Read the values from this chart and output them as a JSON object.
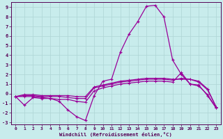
{
  "title": "",
  "xlabel": "Windchill (Refroidissement éolien,°C)",
  "ylabel": "",
  "bg_color": "#c8ecec",
  "line_color": "#990099",
  "xlim": [
    -0.5,
    23.5
  ],
  "ylim": [
    -3.2,
    9.5
  ],
  "xticks": [
    0,
    1,
    2,
    3,
    4,
    5,
    6,
    7,
    8,
    9,
    10,
    11,
    12,
    13,
    14,
    15,
    16,
    17,
    18,
    19,
    20,
    21,
    22,
    23
  ],
  "yticks": [
    -3,
    -2,
    -1,
    0,
    1,
    2,
    3,
    4,
    5,
    6,
    7,
    8,
    9
  ],
  "line1_x": [
    0,
    1,
    2,
    3,
    4,
    5,
    6,
    7,
    8,
    9,
    10,
    11,
    12,
    13,
    14,
    15,
    16,
    17,
    18,
    19,
    20,
    21,
    22,
    23
  ],
  "line1_y": [
    -0.3,
    -1.2,
    -0.4,
    -0.5,
    -0.5,
    -0.8,
    -1.7,
    -2.4,
    -2.8,
    -0.2,
    1.3,
    1.5,
    4.3,
    6.2,
    7.5,
    9.1,
    9.2,
    8.0,
    3.5,
    2.0,
    1.0,
    0.9,
    -0.2,
    -1.5
  ],
  "line2_x": [
    0,
    1,
    2,
    3,
    4,
    5,
    6,
    7,
    8,
    9,
    10,
    11,
    12,
    13,
    14,
    15,
    16,
    17,
    18,
    19,
    20,
    21,
    22,
    23
  ],
  "line2_y": [
    -0.3,
    -0.3,
    -0.3,
    -0.4,
    -0.5,
    -0.6,
    -0.6,
    -0.8,
    -0.9,
    0.3,
    0.6,
    0.8,
    1.0,
    1.1,
    1.2,
    1.3,
    1.3,
    1.3,
    1.2,
    2.2,
    1.0,
    0.8,
    -0.1,
    -1.5
  ],
  "line3_x": [
    0,
    1,
    2,
    3,
    4,
    5,
    6,
    7,
    8,
    9,
    10,
    11,
    12,
    13,
    14,
    15,
    16,
    17,
    18,
    19,
    20,
    21,
    22,
    23
  ],
  "line3_y": [
    -0.3,
    -0.2,
    -0.2,
    -0.3,
    -0.3,
    -0.3,
    -0.4,
    -0.5,
    -0.5,
    0.6,
    0.8,
    1.0,
    1.2,
    1.3,
    1.4,
    1.5,
    1.5,
    1.5,
    1.4,
    1.6,
    1.5,
    1.2,
    0.4,
    -1.4
  ],
  "line4_x": [
    0,
    1,
    2,
    3,
    4,
    5,
    6,
    7,
    8,
    9,
    10,
    11,
    12,
    13,
    14,
    15,
    16,
    17,
    18,
    19,
    20,
    21,
    22,
    23
  ],
  "line4_y": [
    -0.3,
    -0.1,
    -0.1,
    -0.2,
    -0.2,
    -0.2,
    -0.2,
    -0.3,
    -0.3,
    0.7,
    0.9,
    1.1,
    1.3,
    1.4,
    1.5,
    1.6,
    1.6,
    1.6,
    1.5,
    1.5,
    1.5,
    1.3,
    0.5,
    -1.4
  ],
  "grid_color": "#aed4d4",
  "font_name": "monospace"
}
